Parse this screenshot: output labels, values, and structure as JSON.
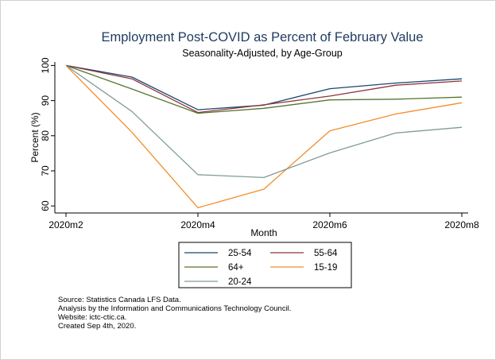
{
  "chart_data": {
    "type": "line",
    "title": "Employment Post-COVID as Percent of February Value",
    "subtitle": "Seasonality-Adjusted, by Age-Group",
    "xlabel": "Month",
    "ylabel": "Percent (%)",
    "x": [
      "2020m2",
      "2020m3",
      "2020m4",
      "2020m5",
      "2020m6",
      "2020m7",
      "2020m8"
    ],
    "xticks": [
      "2020m2",
      "2020m4",
      "2020m6",
      "2020m8"
    ],
    "yticks": [
      60,
      70,
      80,
      90,
      100
    ],
    "ylim": [
      58,
      101
    ],
    "legend_position": "bottom",
    "series": [
      {
        "name": "25-54",
        "color": "#1a476f",
        "values": [
          100,
          96.7,
          87.4,
          88.7,
          93.4,
          95.0,
          96.2
        ]
      },
      {
        "name": "55-64",
        "color": "#90353b",
        "values": [
          100,
          96.2,
          86.6,
          88.8,
          91.3,
          94.4,
          95.6
        ]
      },
      {
        "name": "64+",
        "color": "#55752f",
        "values": [
          100,
          93.3,
          86.4,
          87.8,
          90.2,
          90.4,
          91.0
        ]
      },
      {
        "name": "15-19",
        "color": "#f28e2b",
        "values": [
          100,
          81.0,
          59.5,
          64.8,
          81.4,
          86.2,
          89.4
        ]
      },
      {
        "name": "20-24",
        "color": "#7e9c97",
        "values": [
          100,
          86.9,
          68.9,
          68.1,
          75.1,
          80.8,
          82.4
        ]
      }
    ]
  },
  "notes": [
    "Source: Statistics Canada LFS Data.",
    "Analysis by the Information and Communications Technology Council.",
    "Website: ictc-ctic.ca.",
    "Created Sep 4th, 2020."
  ]
}
